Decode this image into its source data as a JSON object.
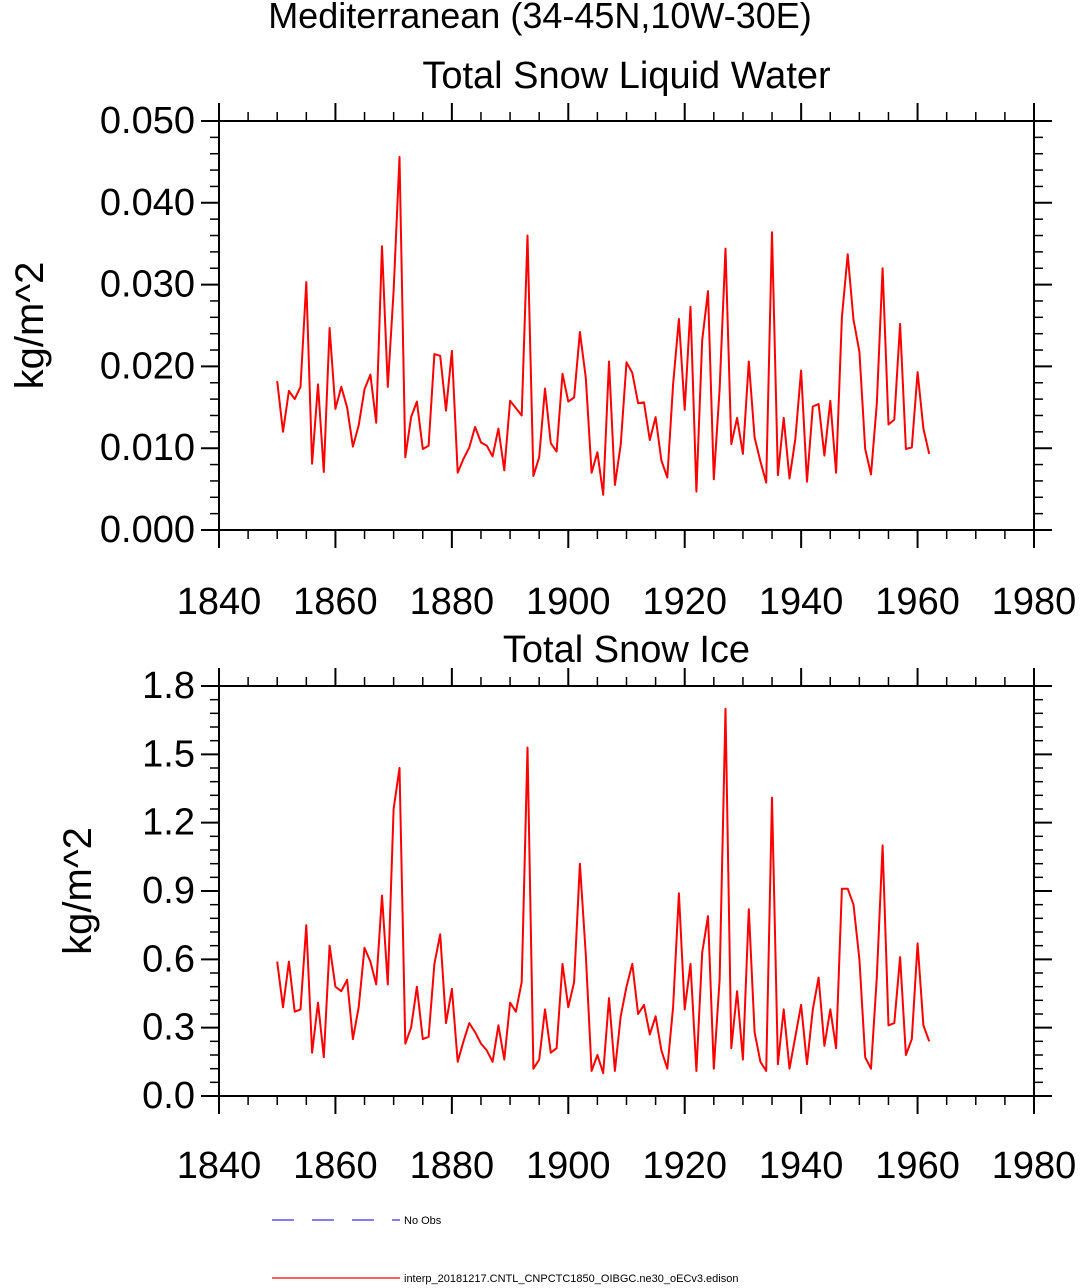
{
  "figure": {
    "title": "Mediterranean (34-45N,10W-30E)"
  },
  "legend": {
    "entries": [
      {
        "label": "No Obs",
        "color": "#0000cc",
        "style": "dashed"
      },
      {
        "label": "interp_20181217.CNTL_CNPCTC1850_OIBGC.ne30_oECv3.edison",
        "color": "#ff0000",
        "style": "solid"
      }
    ]
  },
  "chart_data": [
    {
      "type": "line",
      "title": "Total Snow Liquid Water",
      "xlabel": "",
      "ylabel": "kg/m^2",
      "xlim": [
        1840,
        1980
      ],
      "ylim": [
        0,
        0.05
      ],
      "xticks": [
        1840,
        1860,
        1880,
        1900,
        1920,
        1940,
        1960,
        1980
      ],
      "xtick_labels": [
        "1840",
        "1860",
        "1880",
        "1900",
        "1920",
        "1940",
        "1960",
        "1980"
      ],
      "yticks": [
        0,
        0.01,
        0.02,
        0.03,
        0.04,
        0.05
      ],
      "ytick_labels": [
        "0.000",
        "0.010",
        "0.020",
        "0.030",
        "0.040",
        "0.050"
      ],
      "series": [
        {
          "name": "interp_20181217.CNTL_CNPCTC1850_OIBGC.ne30_oECv3.edison",
          "color": "#ff0000",
          "x_start": 1850,
          "x_step": 1,
          "values": [
            0.0182,
            0.012,
            0.017,
            0.016,
            0.0175,
            0.0303,
            0.0081,
            0.0178,
            0.0071,
            0.0247,
            0.0148,
            0.0175,
            0.015,
            0.0102,
            0.0128,
            0.0172,
            0.019,
            0.0131,
            0.0347,
            0.0175,
            0.0292,
            0.0456,
            0.0089,
            0.0138,
            0.0157,
            0.0099,
            0.0103,
            0.0215,
            0.0213,
            0.0146,
            0.0219,
            0.007,
            0.0087,
            0.0101,
            0.0126,
            0.0107,
            0.0103,
            0.009,
            0.0124,
            0.0073,
            0.0158,
            0.0149,
            0.014,
            0.036,
            0.0066,
            0.0089,
            0.0173,
            0.0106,
            0.0096,
            0.0191,
            0.0157,
            0.0162,
            0.0242,
            0.0186,
            0.007,
            0.0095,
            0.0043,
            0.0206,
            0.0055,
            0.0104,
            0.0205,
            0.0192,
            0.0155,
            0.0156,
            0.011,
            0.0138,
            0.0085,
            0.0064,
            0.0178,
            0.0258,
            0.0147,
            0.0273,
            0.0047,
            0.0232,
            0.0292,
            0.0062,
            0.0172,
            0.0344,
            0.0105,
            0.0137,
            0.0093,
            0.0206,
            0.0113,
            0.0084,
            0.0058,
            0.0364,
            0.0067,
            0.0137,
            0.0063,
            0.0111,
            0.0195,
            0.0059,
            0.0151,
            0.0154,
            0.0091,
            0.0158,
            0.007,
            0.026,
            0.0337,
            0.0257,
            0.0218,
            0.0099,
            0.0068,
            0.0154,
            0.032,
            0.0129,
            0.0135,
            0.0252,
            0.0099,
            0.0101,
            0.0193,
            0.0124,
            0.0093
          ]
        }
      ]
    },
    {
      "type": "line",
      "title": "Total Snow Ice",
      "xlabel": "",
      "ylabel": "kg/m^2",
      "xlim": [
        1840,
        1980
      ],
      "ylim": [
        0,
        1.8
      ],
      "xticks": [
        1840,
        1860,
        1880,
        1900,
        1920,
        1940,
        1960,
        1980
      ],
      "xtick_labels": [
        "1840",
        "1860",
        "1880",
        "1900",
        "1920",
        "1940",
        "1960",
        "1980"
      ],
      "yticks": [
        0,
        0.3,
        0.6,
        0.9,
        1.2,
        1.5,
        1.8
      ],
      "ytick_labels": [
        "0.0",
        "0.3",
        "0.6",
        "0.9",
        "1.2",
        "1.5",
        "1.8"
      ],
      "series": [
        {
          "name": "interp_20181217.CNTL_CNPCTC1850_OIBGC.ne30_oECv3.edison",
          "color": "#ff0000",
          "x_start": 1850,
          "x_step": 1,
          "values": [
            0.59,
            0.39,
            0.59,
            0.37,
            0.38,
            0.75,
            0.19,
            0.41,
            0.17,
            0.66,
            0.48,
            0.46,
            0.51,
            0.25,
            0.39,
            0.65,
            0.59,
            0.49,
            0.88,
            0.49,
            1.26,
            1.44,
            0.23,
            0.3,
            0.48,
            0.25,
            0.26,
            0.58,
            0.71,
            0.32,
            0.47,
            0.15,
            0.24,
            0.32,
            0.28,
            0.23,
            0.2,
            0.15,
            0.31,
            0.16,
            0.41,
            0.37,
            0.5,
            1.53,
            0.12,
            0.16,
            0.38,
            0.19,
            0.21,
            0.58,
            0.39,
            0.5,
            1.02,
            0.62,
            0.11,
            0.18,
            0.1,
            0.43,
            0.11,
            0.35,
            0.48,
            0.58,
            0.36,
            0.4,
            0.27,
            0.35,
            0.2,
            0.12,
            0.39,
            0.89,
            0.38,
            0.58,
            0.11,
            0.63,
            0.79,
            0.12,
            0.51,
            1.7,
            0.21,
            0.46,
            0.16,
            0.82,
            0.28,
            0.15,
            0.11,
            1.31,
            0.14,
            0.38,
            0.12,
            0.26,
            0.4,
            0.14,
            0.38,
            0.52,
            0.22,
            0.38,
            0.21,
            0.91,
            0.91,
            0.84,
            0.6,
            0.17,
            0.12,
            0.52,
            1.1,
            0.31,
            0.32,
            0.61,
            0.18,
            0.25,
            0.67,
            0.31,
            0.24
          ]
        }
      ]
    }
  ]
}
